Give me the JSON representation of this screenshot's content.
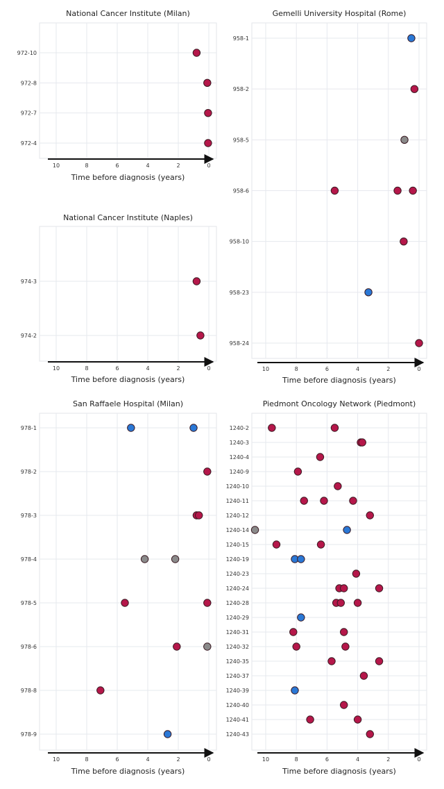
{
  "colors": {
    "red": "#b5174a",
    "blue": "#2a78d6",
    "gray": "#8a8a8a",
    "outline": "#3a1a22",
    "grid": "#e6e8ee",
    "frame": "#e3e5ea",
    "axis": "#111111"
  },
  "chart_data": [
    {
      "type": "scatter",
      "title": "National Cancer Institute (Milan)",
      "xlabel": "Time before diagnosis (years)",
      "ylabel": "",
      "xlim": [
        10.5,
        0
      ],
      "x_ticks": [
        10,
        8,
        6,
        4,
        2,
        0
      ],
      "x_tick_labels": [
        "10",
        "8",
        "6",
        "4",
        "2",
        "0"
      ],
      "grid": true,
      "categories": [
        "972-10",
        "972-8",
        "972-7",
        "972-4"
      ],
      "points": [
        {
          "patient": "972-10",
          "x": 0.8,
          "color": "red"
        },
        {
          "patient": "972-8",
          "x": 0.1,
          "color": "red"
        },
        {
          "patient": "972-7",
          "x": 0.05,
          "color": "red"
        },
        {
          "patient": "972-4",
          "x": 0.05,
          "color": "red"
        }
      ]
    },
    {
      "type": "scatter",
      "title": "Gemelli University Hospital (Rome)",
      "xlabel": "Time before diagnosis (years)",
      "ylabel": "",
      "xlim": [
        10.5,
        0
      ],
      "x_ticks": [
        10,
        8,
        6,
        4,
        2,
        0
      ],
      "x_tick_labels": [
        "10",
        "8",
        "6",
        "4",
        "2",
        "0"
      ],
      "grid": true,
      "categories": [
        "958-1",
        "958-2",
        "958-5",
        "958-6",
        "958-10",
        "958-23",
        "958-24"
      ],
      "points": [
        {
          "patient": "958-1",
          "x": 0.5,
          "color": "blue"
        },
        {
          "patient": "958-2",
          "x": 0.3,
          "color": "red"
        },
        {
          "patient": "958-5",
          "x": 0.95,
          "color": "gray"
        },
        {
          "patient": "958-6",
          "x": 5.5,
          "color": "red"
        },
        {
          "patient": "958-6",
          "x": 1.4,
          "color": "red"
        },
        {
          "patient": "958-6",
          "x": 0.4,
          "color": "red"
        },
        {
          "patient": "958-10",
          "x": 1.0,
          "color": "red"
        },
        {
          "patient": "958-23",
          "x": 3.3,
          "color": "blue"
        },
        {
          "patient": "958-24",
          "x": 0.0,
          "color": "red"
        }
      ]
    },
    {
      "type": "scatter",
      "title": "National Cancer Institute (Naples)",
      "xlabel": "Time before diagnosis (years)",
      "ylabel": "",
      "xlim": [
        10.5,
        0
      ],
      "x_ticks": [
        10,
        8,
        6,
        4,
        2,
        0
      ],
      "x_tick_labels": [
        "10",
        "8",
        "6",
        "4",
        "2",
        "0"
      ],
      "grid": true,
      "categories": [
        "974-3",
        "974-2"
      ],
      "points": [
        {
          "patient": "974-3",
          "x": 0.8,
          "color": "red"
        },
        {
          "patient": "974-2",
          "x": 0.55,
          "color": "red"
        }
      ]
    },
    {
      "type": "scatter",
      "title": "San Raffaele Hospital (Milan)",
      "xlabel": "Time before diagnosis (years)",
      "ylabel": "",
      "xlim": [
        10.5,
        0
      ],
      "x_ticks": [
        10,
        8,
        6,
        4,
        2,
        0
      ],
      "x_tick_labels": [
        "10",
        "8",
        "6",
        "4",
        "2",
        "0"
      ],
      "grid": true,
      "categories": [
        "978-1",
        "978-2",
        "978-3",
        "978-4",
        "978-5",
        "978-6",
        "978-8",
        "978-9"
      ],
      "points": [
        {
          "patient": "978-1",
          "x": 5.1,
          "color": "blue"
        },
        {
          "patient": "978-1",
          "x": 1.0,
          "color": "blue"
        },
        {
          "patient": "978-2",
          "x": 0.1,
          "color": "red"
        },
        {
          "patient": "978-3",
          "x": 0.8,
          "color": "red"
        },
        {
          "patient": "978-3",
          "x": 0.65,
          "color": "red"
        },
        {
          "patient": "978-4",
          "x": 4.2,
          "color": "gray"
        },
        {
          "patient": "978-4",
          "x": 2.2,
          "color": "gray"
        },
        {
          "patient": "978-5",
          "x": 5.5,
          "color": "red"
        },
        {
          "patient": "978-5",
          "x": 0.1,
          "color": "red"
        },
        {
          "patient": "978-6",
          "x": 2.1,
          "color": "red"
        },
        {
          "patient": "978-6",
          "x": 0.1,
          "color": "gray"
        },
        {
          "patient": "978-8",
          "x": 7.1,
          "color": "red"
        },
        {
          "patient": "978-9",
          "x": 2.7,
          "color": "blue"
        }
      ]
    },
    {
      "type": "scatter",
      "title": "Piedmont Oncology Network (Piedmont)",
      "xlabel": "Time before diagnosis (years)",
      "ylabel": "",
      "xlim": [
        10.5,
        0
      ],
      "x_ticks": [
        10,
        8,
        6,
        4,
        2,
        0
      ],
      "x_tick_labels": [
        "10",
        "8",
        "6",
        "4",
        "2",
        "0"
      ],
      "grid": true,
      "categories": [
        "1240-2",
        "1240-3",
        "1240-4",
        "1240-9",
        "1240-10",
        "1240-11",
        "1240-12",
        "1240-14",
        "1240-15",
        "1240-19",
        "1240-23",
        "1240-24",
        "1240-28",
        "1240-29",
        "1240-31",
        "1240-32",
        "1240-35",
        "1240-37",
        "1240-39",
        "1240-40",
        "1240-41",
        "1240-43"
      ],
      "points": [
        {
          "patient": "1240-2",
          "x": 9.6,
          "color": "red"
        },
        {
          "patient": "1240-2",
          "x": 5.5,
          "color": "red"
        },
        {
          "patient": "1240-3",
          "x": 3.8,
          "color": "red"
        },
        {
          "patient": "1240-3",
          "x": 3.7,
          "color": "red"
        },
        {
          "patient": "1240-4",
          "x": 6.45,
          "color": "red"
        },
        {
          "patient": "1240-9",
          "x": 7.9,
          "color": "red"
        },
        {
          "patient": "1240-10",
          "x": 5.3,
          "color": "red"
        },
        {
          "patient": "1240-11",
          "x": 7.5,
          "color": "red"
        },
        {
          "patient": "1240-11",
          "x": 6.2,
          "color": "red"
        },
        {
          "patient": "1240-11",
          "x": 4.3,
          "color": "red"
        },
        {
          "patient": "1240-12",
          "x": 3.2,
          "color": "red"
        },
        {
          "patient": "1240-14",
          "x": 10.7,
          "color": "gray"
        },
        {
          "patient": "1240-14",
          "x": 4.7,
          "color": "blue"
        },
        {
          "patient": "1240-15",
          "x": 9.3,
          "color": "red"
        },
        {
          "patient": "1240-15",
          "x": 6.4,
          "color": "red"
        },
        {
          "patient": "1240-19",
          "x": 8.1,
          "color": "blue"
        },
        {
          "patient": "1240-19",
          "x": 7.7,
          "color": "blue"
        },
        {
          "patient": "1240-23",
          "x": 4.1,
          "color": "red"
        },
        {
          "patient": "1240-24",
          "x": 5.2,
          "color": "red"
        },
        {
          "patient": "1240-24",
          "x": 4.9,
          "color": "red"
        },
        {
          "patient": "1240-24",
          "x": 2.6,
          "color": "red"
        },
        {
          "patient": "1240-28",
          "x": 5.4,
          "color": "red"
        },
        {
          "patient": "1240-28",
          "x": 5.1,
          "color": "red"
        },
        {
          "patient": "1240-28",
          "x": 4.0,
          "color": "red"
        },
        {
          "patient": "1240-29",
          "x": 7.7,
          "color": "blue"
        },
        {
          "patient": "1240-31",
          "x": 8.2,
          "color": "red"
        },
        {
          "patient": "1240-31",
          "x": 4.9,
          "color": "red"
        },
        {
          "patient": "1240-32",
          "x": 8.0,
          "color": "red"
        },
        {
          "patient": "1240-32",
          "x": 4.8,
          "color": "red"
        },
        {
          "patient": "1240-35",
          "x": 5.7,
          "color": "red"
        },
        {
          "patient": "1240-35",
          "x": 2.6,
          "color": "red"
        },
        {
          "patient": "1240-37",
          "x": 3.6,
          "color": "red"
        },
        {
          "patient": "1240-39",
          "x": 8.1,
          "color": "blue"
        },
        {
          "patient": "1240-40",
          "x": 4.9,
          "color": "red"
        },
        {
          "patient": "1240-41",
          "x": 7.1,
          "color": "red"
        },
        {
          "patient": "1240-41",
          "x": 4.0,
          "color": "red"
        },
        {
          "patient": "1240-43",
          "x": 3.2,
          "color": "red"
        }
      ]
    }
  ]
}
